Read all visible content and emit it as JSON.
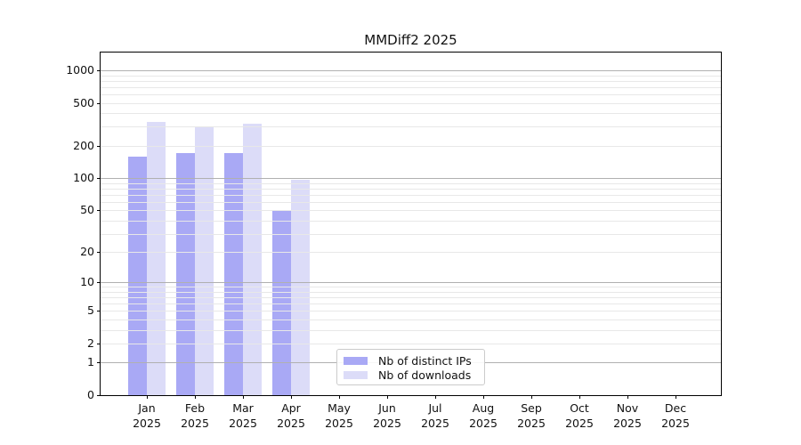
{
  "figure": {
    "background": "#ffffff"
  },
  "chart_data": {
    "type": "bar",
    "title": "MMDiff2 2025",
    "xlabel": "",
    "ylabel": "",
    "y_scale": "log10(value+1)",
    "ylim": [
      0,
      1460
    ],
    "grid": true,
    "legend_position": "lower center",
    "year": "2025",
    "months": [
      "Jan",
      "Feb",
      "Mar",
      "Apr",
      "May",
      "Jun",
      "Jul",
      "Aug",
      "Sep",
      "Oct",
      "Nov",
      "Dec"
    ],
    "categories": [
      "Jan 2025",
      "Feb 2025",
      "Mar 2025",
      "Apr 2025",
      "May 2025",
      "Jun 2025",
      "Jul 2025",
      "Aug 2025",
      "Sep 2025",
      "Oct 2025",
      "Nov 2025",
      "Dec 2025"
    ],
    "series": [
      {
        "name": "Nb of distinct IPs",
        "color": "#a9a9f5",
        "values": [
          160,
          170,
          170,
          50,
          0,
          0,
          0,
          0,
          0,
          0,
          0,
          0
        ]
      },
      {
        "name": "Nb of downloads",
        "color": "#dcdcf8",
        "values": [
          330,
          295,
          320,
          97,
          0,
          0,
          0,
          0,
          0,
          0,
          0,
          0
        ]
      }
    ],
    "y_ticks": [
      0,
      1,
      2,
      5,
      10,
      20,
      50,
      100,
      200,
      500,
      1000
    ],
    "y_major_gridlines": [
      1,
      10,
      100,
      1000
    ],
    "y_minor_gridlines": [
      2,
      3,
      4,
      5,
      6,
      7,
      8,
      9,
      20,
      30,
      40,
      50,
      60,
      70,
      80,
      90,
      200,
      300,
      400,
      500,
      600,
      700,
      800,
      900
    ],
    "colors": {
      "major_grid": "#b0b0b0",
      "minor_grid": "#e8e8e8",
      "spine": "#000000",
      "text": "#111111"
    }
  }
}
